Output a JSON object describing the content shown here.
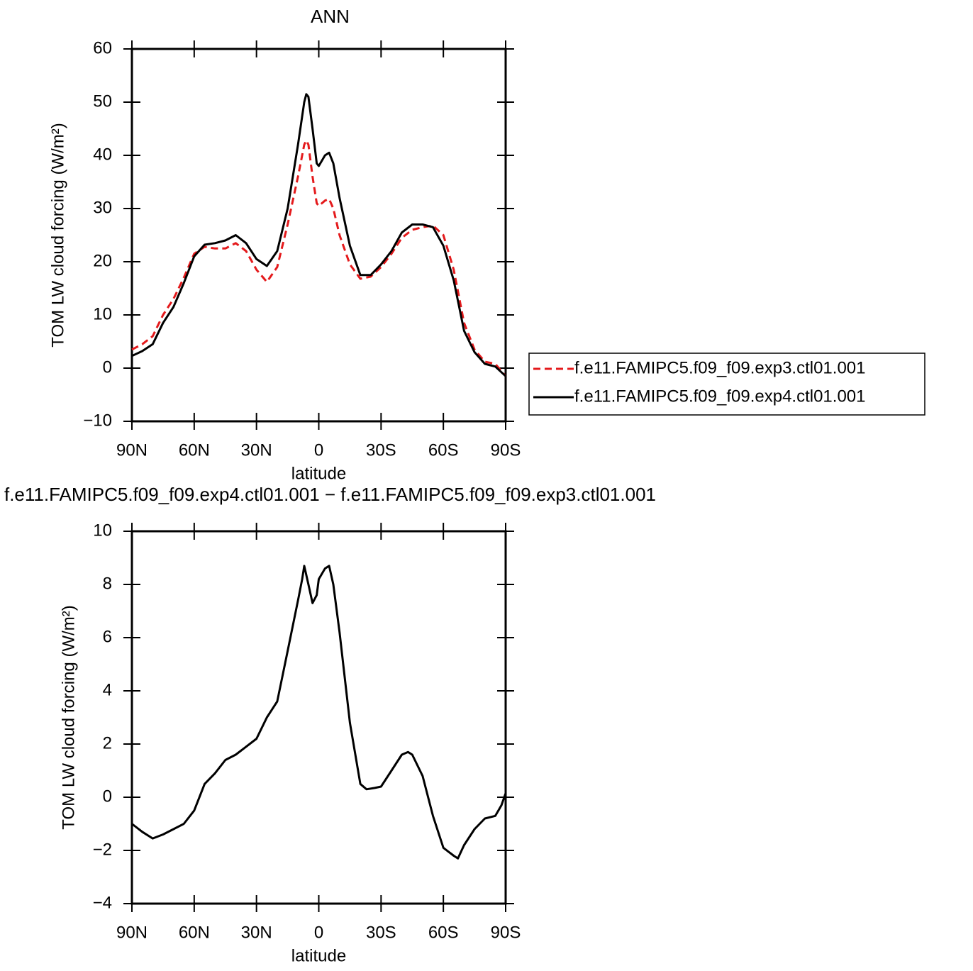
{
  "chart_data": [
    {
      "type": "line",
      "title": "ANN",
      "xlabel": "latitude",
      "ylabel": "TOM LW cloud forcing (W/m²)",
      "x": [
        90,
        85,
        80,
        75,
        70,
        65,
        60,
        55,
        50,
        45,
        40,
        35,
        30,
        25,
        20,
        15,
        10,
        7,
        6,
        5,
        3,
        1,
        0,
        -3,
        -5,
        -7,
        -10,
        -15,
        -20,
        -25,
        -30,
        -35,
        -40,
        -45,
        -50,
        -55,
        -60,
        -65,
        -70,
        -75,
        -80,
        -85,
        -90
      ],
      "series": [
        {
          "name": "f.e11.FAMIPC5.f09_f09.exp3.ctl01.001",
          "color": "#e41a1c",
          "line_style": "dashed",
          "values": [
            3.5,
            4.5,
            6,
            10,
            13,
            17,
            21.5,
            22.8,
            22.5,
            22.5,
            23.5,
            22,
            18.5,
            16.2,
            19,
            27,
            36,
            42,
            42.8,
            42,
            36,
            31,
            30.5,
            31.5,
            31.8,
            30,
            25,
            19.5,
            16.8,
            17.2,
            19,
            21.5,
            24.5,
            26,
            26.5,
            26.8,
            25,
            18.5,
            8.5,
            3.5,
            1.2,
            0.8,
            -1.5
          ]
        },
        {
          "name": "f.e11.FAMIPC5.f09_f09.exp4.ctl01.001",
          "color": "#000000",
          "line_style": "solid",
          "values": [
            2.3,
            3.2,
            4.5,
            8.5,
            11.5,
            16,
            21,
            23.2,
            23.5,
            24,
            25,
            23.5,
            20.5,
            19.2,
            22,
            30,
            42,
            50,
            51.5,
            51,
            45,
            38.5,
            38,
            40,
            40.5,
            38.5,
            32,
            23,
            17.5,
            17.5,
            19.5,
            22,
            25.5,
            27,
            27,
            26.5,
            23,
            16.5,
            7,
            3,
            0.8,
            0.3,
            -1.5
          ]
        }
      ],
      "xlim": [
        90,
        -90
      ],
      "xticks": [
        {
          "value": 90,
          "label": "90N"
        },
        {
          "value": 60,
          "label": "60N"
        },
        {
          "value": 30,
          "label": "30N"
        },
        0,
        {
          "value": -30,
          "label": "30S"
        },
        {
          "value": -60,
          "label": "60S"
        },
        {
          "value": -90,
          "label": "90S"
        }
      ],
      "ylim": [
        -10,
        60
      ],
      "yticks": [
        {
          "value": -10,
          "label": "−10"
        },
        0,
        10,
        20,
        30,
        40,
        50,
        60
      ],
      "legend": "outside-right"
    },
    {
      "type": "line",
      "title": "f.e11.FAMIPC5.f09_f09.exp4.ctl01.001 − f.e11.FAMIPC5.f09_f09.exp3.ctl01.001",
      "xlabel": "latitude",
      "ylabel": "TOM LW cloud forcing (W/m²)",
      "x": [
        90,
        85,
        80,
        75,
        70,
        65,
        60,
        55,
        50,
        45,
        40,
        35,
        30,
        25,
        20,
        15,
        10,
        8,
        7,
        5,
        3,
        1,
        0,
        -3,
        -5,
        -7,
        -10,
        -15,
        -20,
        -23,
        -27,
        -30,
        -35,
        -40,
        -43,
        -45,
        -50,
        -55,
        -60,
        -65,
        -67,
        -70,
        -75,
        -80,
        -85,
        -88,
        -90
      ],
      "values": [
        -1,
        -1.3,
        -1.55,
        -1.4,
        -1.2,
        -1.0,
        -0.5,
        0.5,
        0.9,
        1.4,
        1.6,
        1.9,
        2.2,
        3.0,
        3.6,
        5.5,
        7.4,
        8.2,
        8.7,
        8.0,
        7.3,
        7.6,
        8.2,
        8.6,
        8.7,
        8.0,
        6.2,
        2.8,
        0.5,
        0.3,
        0.35,
        0.4,
        1.0,
        1.6,
        1.7,
        1.6,
        0.8,
        -0.7,
        -1.9,
        -2.2,
        -2.3,
        -1.8,
        -1.2,
        -0.8,
        -0.7,
        -0.3,
        0.15
      ],
      "color": "#000000",
      "xlim": [
        90,
        -90
      ],
      "xticks": [
        {
          "value": 90,
          "label": "90N"
        },
        {
          "value": 60,
          "label": "60N"
        },
        {
          "value": 30,
          "label": "30N"
        },
        0,
        {
          "value": -30,
          "label": "30S"
        },
        {
          "value": -60,
          "label": "60S"
        },
        {
          "value": -90,
          "label": "90S"
        }
      ],
      "ylim": [
        -4,
        10
      ],
      "yticks": [
        {
          "value": -4,
          "label": "−4"
        },
        {
          "value": -2,
          "label": "−2"
        },
        0,
        2,
        4,
        6,
        8,
        10
      ]
    }
  ]
}
